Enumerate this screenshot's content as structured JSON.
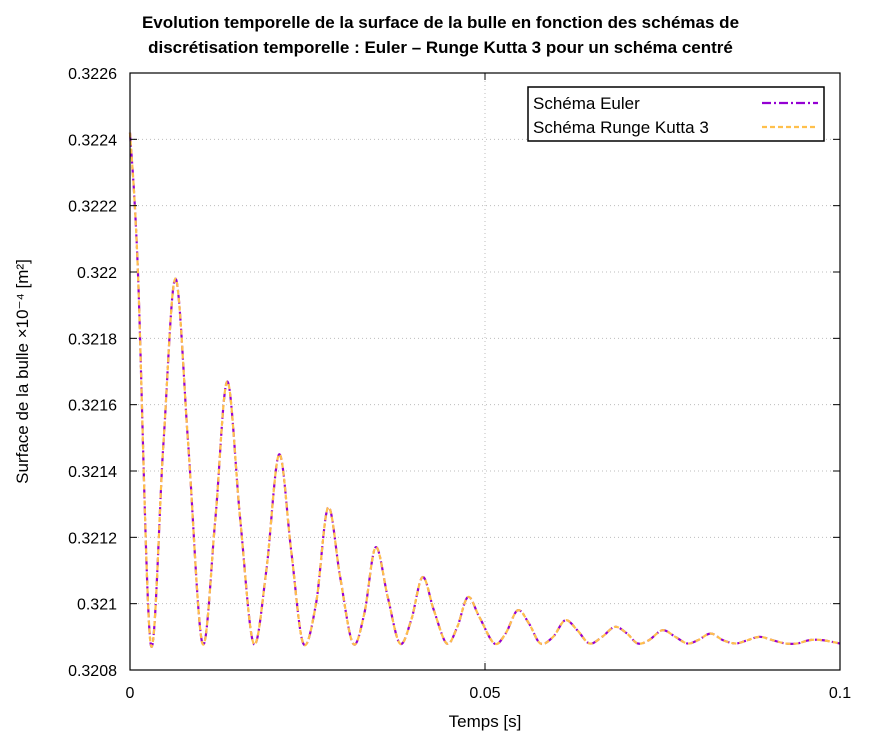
{
  "chart_data": {
    "type": "line",
    "title": [
      "Evolution temporelle de la surface de la bulle en fonction des schémas de",
      "discrétisation temporelle : Euler – Runge Kutta 3 pour un schéma centré"
    ],
    "xlabel": "Temps [s]",
    "ylabel": "Surface de la bulle ×10⁻⁴ [m²]",
    "xlim": [
      0,
      0.1
    ],
    "ylim": [
      0.3208,
      0.3226
    ],
    "x_ticks": [
      "0",
      "0.05",
      "0.1"
    ],
    "y_ticks": [
      "0.3208",
      "0.321",
      "0.3212",
      "0.3214",
      "0.3216",
      "0.3218",
      "0.322",
      "0.3222",
      "0.3224",
      "0.3226"
    ],
    "grid": true,
    "legend_position": "top-right",
    "series": [
      {
        "name": "Schéma Euler",
        "color": "#9400d3",
        "dash": "dash-dot",
        "x": [
          0.0,
          0.0011,
          0.0029,
          0.0047,
          0.0064,
          0.0082,
          0.0102,
          0.012,
          0.0137,
          0.0155,
          0.0174,
          0.0192,
          0.021,
          0.0227,
          0.0244,
          0.0262,
          0.0279,
          0.0296,
          0.0314,
          0.033,
          0.0346,
          0.0363,
          0.038,
          0.0396,
          0.0412,
          0.0428,
          0.0446,
          0.0461,
          0.0476,
          0.0492,
          0.0513,
          0.0529,
          0.0546,
          0.0562,
          0.0578,
          0.0596,
          0.0613,
          0.063,
          0.0647,
          0.0665,
          0.0683,
          0.07,
          0.0715,
          0.0731,
          0.075,
          0.0768,
          0.0785,
          0.08,
          0.0818,
          0.0835,
          0.0853,
          0.087,
          0.0887,
          0.0905,
          0.0923,
          0.094,
          0.0957,
          0.0975,
          0.1
        ],
        "values": [
          0.32242,
          0.32201,
          0.32088,
          0.32148,
          0.32198,
          0.32148,
          0.32088,
          0.32125,
          0.32167,
          0.32126,
          0.32088,
          0.3211,
          0.32145,
          0.32116,
          0.32088,
          0.321,
          0.32129,
          0.32108,
          0.32088,
          0.32097,
          0.32117,
          0.32102,
          0.32088,
          0.32095,
          0.32108,
          0.32098,
          0.32088,
          0.32093,
          0.32102,
          0.32096,
          0.32088,
          0.32091,
          0.32098,
          0.32094,
          0.32088,
          0.3209,
          0.32095,
          0.32092,
          0.32088,
          0.3209,
          0.32093,
          0.32091,
          0.32088,
          0.32089,
          0.32092,
          0.3209,
          0.32088,
          0.32089,
          0.32091,
          0.32089,
          0.32088,
          0.32089,
          0.3209,
          0.32089,
          0.32088,
          0.32088,
          0.32089,
          0.32089,
          0.32088
        ]
      },
      {
        "name": "Schéma Runge Kutta 3",
        "color": "#ffc04c",
        "dash": "dashed",
        "x": [
          0.0,
          0.0011,
          0.0029,
          0.0047,
          0.0064,
          0.0082,
          0.0102,
          0.012,
          0.0137,
          0.0155,
          0.0174,
          0.0192,
          0.021,
          0.0227,
          0.0244,
          0.0262,
          0.0279,
          0.0296,
          0.0314,
          0.033,
          0.0346,
          0.0363,
          0.038,
          0.0396,
          0.0412,
          0.0428,
          0.0446,
          0.0461,
          0.0476,
          0.0492,
          0.0513,
          0.0529,
          0.0546,
          0.0562,
          0.0578,
          0.0596,
          0.0613,
          0.063,
          0.0647,
          0.0665,
          0.0683,
          0.07,
          0.0715,
          0.0731,
          0.075,
          0.0768,
          0.0785,
          0.08,
          0.0818,
          0.0835,
          0.0853,
          0.087,
          0.0887,
          0.0905,
          0.0923,
          0.094,
          0.0957,
          0.0975,
          0.1
        ],
        "values": [
          0.32242,
          0.32201,
          0.32088,
          0.32148,
          0.32198,
          0.32148,
          0.32088,
          0.32125,
          0.32167,
          0.32126,
          0.32088,
          0.3211,
          0.32145,
          0.32116,
          0.32088,
          0.321,
          0.32129,
          0.32108,
          0.32088,
          0.32097,
          0.32117,
          0.32102,
          0.32088,
          0.32095,
          0.32108,
          0.32098,
          0.32088,
          0.32093,
          0.32102,
          0.32096,
          0.32088,
          0.32091,
          0.32098,
          0.32094,
          0.32088,
          0.3209,
          0.32095,
          0.32092,
          0.32088,
          0.3209,
          0.32093,
          0.32091,
          0.32088,
          0.32089,
          0.32092,
          0.3209,
          0.32088,
          0.32089,
          0.32091,
          0.32089,
          0.32088,
          0.32089,
          0.3209,
          0.32089,
          0.32088,
          0.32088,
          0.32089,
          0.32089,
          0.32088
        ]
      }
    ]
  }
}
